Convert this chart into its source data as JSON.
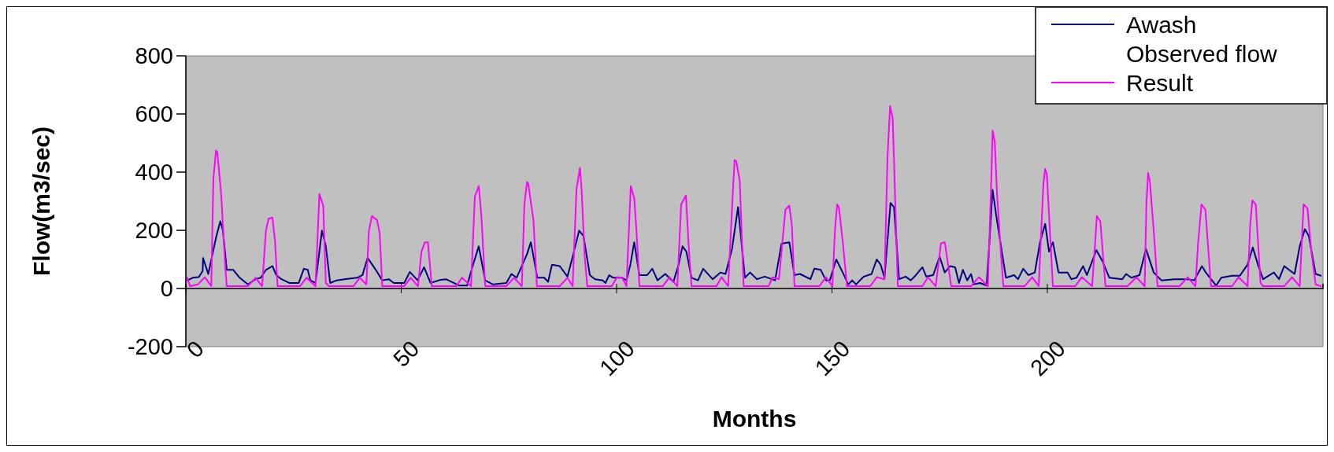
{
  "chart_data": {
    "type": "line",
    "xlabel": "Months",
    "ylabel": "Flow(m3/sec)",
    "xlim": [
      0,
      264
    ],
    "xticks": [
      0,
      50,
      100,
      150,
      200
    ],
    "ylim": [
      -200,
      800
    ],
    "yticks": [
      -200,
      0,
      200,
      400,
      600,
      800
    ],
    "grid": false,
    "legend": "top right",
    "marker": "none",
    "line_style": "solid",
    "series": [
      {
        "name": "Awash Observed flow",
        "color": "#000080",
        "x": [
          0.4,
          1.6,
          3,
          3.9,
          4,
          5.2,
          7.1,
          8,
          8.6,
          9.5,
          11,
          12.5,
          14.4,
          16.2,
          17.4,
          18.6,
          20.1,
          21,
          22.2,
          24,
          26.2,
          27.4,
          28.3,
          28.9,
          30.1,
          31.6,
          32.5,
          33.5,
          35,
          36.8,
          39.8,
          41,
          42.2,
          44.1,
          45.6,
          47.1,
          48.3,
          50.7,
          52,
          53.8,
          55.3,
          56.8,
          59.2,
          60.4,
          63.5,
          65.3,
          66.5,
          68,
          69.5,
          71.3,
          74.4,
          75.6,
          76.8,
          79.2,
          80.1,
          81.6,
          83.2,
          84.1,
          85,
          86.8,
          88.6,
          89.8,
          91.3,
          92.3,
          93.8,
          95,
          96.8,
          97.4,
          98.3,
          99.2,
          101.3,
          102.3,
          103.2,
          104.1,
          105.3,
          107.1,
          108.3,
          109.5,
          111.3,
          113.2,
          114.4,
          115.3,
          116.2,
          117.4,
          118.9,
          120.1,
          122.3,
          124.1,
          125.3,
          126.8,
          128.2,
          129.8,
          131,
          132.6,
          134.4,
          136.8,
          138.3,
          140.1,
          141.3,
          142.6,
          145,
          145.9,
          147.4,
          148.6,
          149.5,
          151,
          152.5,
          153.8,
          154.7,
          155.6,
          156.5,
          157.4,
          159.2,
          160.4,
          161.3,
          162.2,
          163.6,
          164.4,
          165.6,
          167.1,
          168.3,
          169.5,
          171,
          171.9,
          173.5,
          175,
          176.2,
          177.4,
          178.6,
          179.5,
          180.4,
          181.4,
          182.3,
          182.9,
          184.4,
          185.9,
          186.5,
          187.3,
          188.3,
          190.4,
          192.3,
          193.2,
          194.4,
          195.6,
          197.1,
          198.3,
          199.5,
          200.4,
          201.3,
          202.6,
          204.7,
          205.6,
          206.8,
          208.3,
          209.2,
          211.4,
          212.9,
          214.4,
          217.4,
          218.3,
          219.5,
          221.4,
          222.9,
          224.7,
          226.5,
          229.5,
          232.6,
          234.1,
          235.9,
          236.8,
          239.2,
          240.4,
          242.9,
          244.7,
          246.5,
          247.7,
          248.9,
          250.1,
          252.6,
          253.8,
          255,
          257.4,
          258.6,
          259.8,
          260.7,
          262.3,
          263.5
        ],
        "values": [
          28,
          37,
          39,
          60,
          105,
          50,
          181,
          231,
          200,
          64,
          64,
          37,
          14,
          32,
          37,
          64,
          77,
          46,
          32,
          19,
          19,
          68,
          64,
          28,
          19,
          199,
          145,
          19,
          28,
          32,
          37,
          46,
          105,
          64,
          28,
          32,
          19,
          19,
          57,
          28,
          73,
          19,
          30,
          32,
          10,
          10,
          73,
          145,
          28,
          14,
          19,
          50,
          37,
          118,
          159,
          37,
          37,
          23,
          82,
          77,
          41,
          109,
          199,
          181,
          46,
          32,
          28,
          19,
          46,
          37,
          37,
          28,
          82,
          159,
          46,
          46,
          68,
          28,
          50,
          23,
          82,
          145,
          127,
          37,
          28,
          68,
          32,
          55,
          50,
          136,
          280,
          37,
          55,
          32,
          41,
          28,
          154,
          159,
          46,
          50,
          32,
          68,
          64,
          28,
          28,
          100,
          55,
          14,
          28,
          14,
          28,
          41,
          50,
          100,
          82,
          37,
          294,
          280,
          32,
          41,
          28,
          46,
          73,
          41,
          46,
          109,
          55,
          77,
          73,
          19,
          64,
          28,
          50,
          14,
          19,
          10,
          145,
          339,
          235,
          37,
          46,
          32,
          68,
          46,
          55,
          159,
          222,
          127,
          159,
          55,
          55,
          32,
          37,
          77,
          46,
          132,
          91,
          37,
          32,
          50,
          37,
          46,
          136,
          55,
          28,
          32,
          32,
          28,
          77,
          55,
          10,
          37,
          44,
          44,
          82,
          141,
          82,
          32,
          55,
          32,
          77,
          50,
          145,
          204,
          181,
          50,
          44
        ]
      },
      {
        "name": "Result",
        "color": "#ff00ff",
        "x": [
          0.3,
          1,
          2.8,
          4.4,
          5.9,
          6.4,
          7,
          7.3,
          8.2,
          9.2,
          9.5,
          14.4,
          16.2,
          17.7,
          18.6,
          19.2,
          20.1,
          20.7,
          21.3,
          26.5,
          28,
          30.1,
          31,
          31.9,
          32.5,
          33.2,
          38.9,
          40.4,
          41.9,
          42.5,
          43.2,
          44.4,
          45,
          45.6,
          50.7,
          52.2,
          53.9,
          54.7,
          55.5,
          56.2,
          57.1,
          62.8,
          64.1,
          66.2,
          67.1,
          68,
          68.6,
          69.5,
          74.4,
          76.2,
          78,
          78.6,
          79.2,
          79.5,
          80.7,
          81.5,
          86.8,
          88.6,
          89.8,
          90.7,
          91.5,
          91.9,
          92.6,
          93.2,
          98.9,
          100.1,
          101.3,
          102.3,
          102.9,
          103.3,
          104.1,
          104.7,
          105.3,
          110.7,
          112.3,
          114.1,
          115,
          116.1,
          116.7,
          117.4,
          123.2,
          124.4,
          125.9,
          127.1,
          127.4,
          127.8,
          128.6,
          129.5,
          135.3,
          136.2,
          137.7,
          139.2,
          140.1,
          140.7,
          141.3,
          147.1,
          148.6,
          150.1,
          150.7,
          151.2,
          151.6,
          152.5,
          153.5,
          158.9,
          160.4,
          162.2,
          162.9,
          163.5,
          164.1,
          164.4,
          165.3,
          171,
          172.3,
          174.1,
          175.3,
          176.2,
          177.7,
          182.3,
          184.1,
          186.2,
          187,
          187.3,
          187.8,
          188.3,
          189.2,
          189.8,
          194.7,
          196.5,
          198,
          199.1,
          199.5,
          199.9,
          200.4,
          201.3,
          206.5,
          208,
          210.4,
          211.1,
          211.5,
          212.3,
          213.5,
          218.6,
          220.7,
          222.6,
          223,
          223.4,
          223.8,
          224.7,
          225.6,
          230.7,
          232.6,
          234.4,
          235,
          235.8,
          236.7,
          238,
          242.9,
          244.4,
          246.5,
          247.1,
          247.6,
          248.4,
          249.5,
          250.1,
          255,
          256.8,
          258.6,
          259.5,
          260.4,
          261.3,
          262.3,
          263.5
        ],
        "values": [
          37,
          8,
          14,
          39,
          8,
          379,
          474,
          469,
          325,
          64,
          8,
          8,
          37,
          8,
          199,
          240,
          244,
          163,
          8,
          8,
          37,
          8,
          325,
          285,
          19,
          8,
          8,
          37,
          14,
          199,
          249,
          235,
          190,
          8,
          8,
          37,
          8,
          127,
          159,
          159,
          8,
          8,
          37,
          8,
          316,
          352,
          253,
          8,
          8,
          37,
          8,
          289,
          366,
          361,
          235,
          8,
          8,
          37,
          8,
          343,
          415,
          334,
          109,
          8,
          8,
          39,
          37,
          8,
          217,
          352,
          311,
          181,
          8,
          8,
          39,
          8,
          289,
          320,
          155,
          8,
          8,
          39,
          8,
          361,
          442,
          437,
          370,
          8,
          8,
          39,
          32,
          271,
          285,
          217,
          8,
          8,
          39,
          8,
          199,
          289,
          280,
          163,
          8,
          8,
          39,
          32,
          451,
          627,
          586,
          442,
          8,
          8,
          39,
          8,
          155,
          159,
          8,
          8,
          39,
          8,
          379,
          543,
          505,
          334,
          127,
          8,
          8,
          39,
          8,
          361,
          411,
          393,
          253,
          8,
          8,
          39,
          8,
          155,
          249,
          231,
          8,
          8,
          39,
          8,
          289,
          397,
          370,
          199,
          8,
          8,
          39,
          8,
          155,
          289,
          271,
          8,
          8,
          39,
          8,
          217,
          303,
          289,
          19,
          8,
          8,
          39,
          8,
          289,
          276,
          127,
          14,
          8
        ]
      }
    ]
  }
}
